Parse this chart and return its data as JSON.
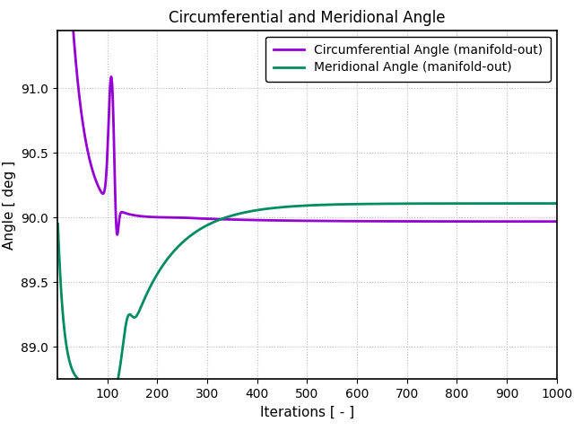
{
  "title": "Circumferential and Meridional Angle",
  "xlabel": "Iterations [ - ]",
  "ylabel": "Angle [ deg ]",
  "xlim": [
    0,
    1000
  ],
  "ylim": [
    88.75,
    91.45
  ],
  "yticks": [
    89.0,
    89.5,
    90.0,
    90.5,
    91.0
  ],
  "xticks": [
    100,
    200,
    300,
    400,
    500,
    600,
    700,
    800,
    900,
    1000
  ],
  "circ_color": "#9400D3",
  "merid_color": "#008B60",
  "legend_labels": [
    "Circumferential Angle (manifold-out)",
    "Meridional Angle (manifold-out)"
  ],
  "title_fontsize": 12,
  "label_fontsize": 11,
  "tick_fontsize": 10,
  "legend_fontsize": 10,
  "linewidth": 2.0,
  "background_color": "#ffffff",
  "grid_color": "#bbbbbb"
}
